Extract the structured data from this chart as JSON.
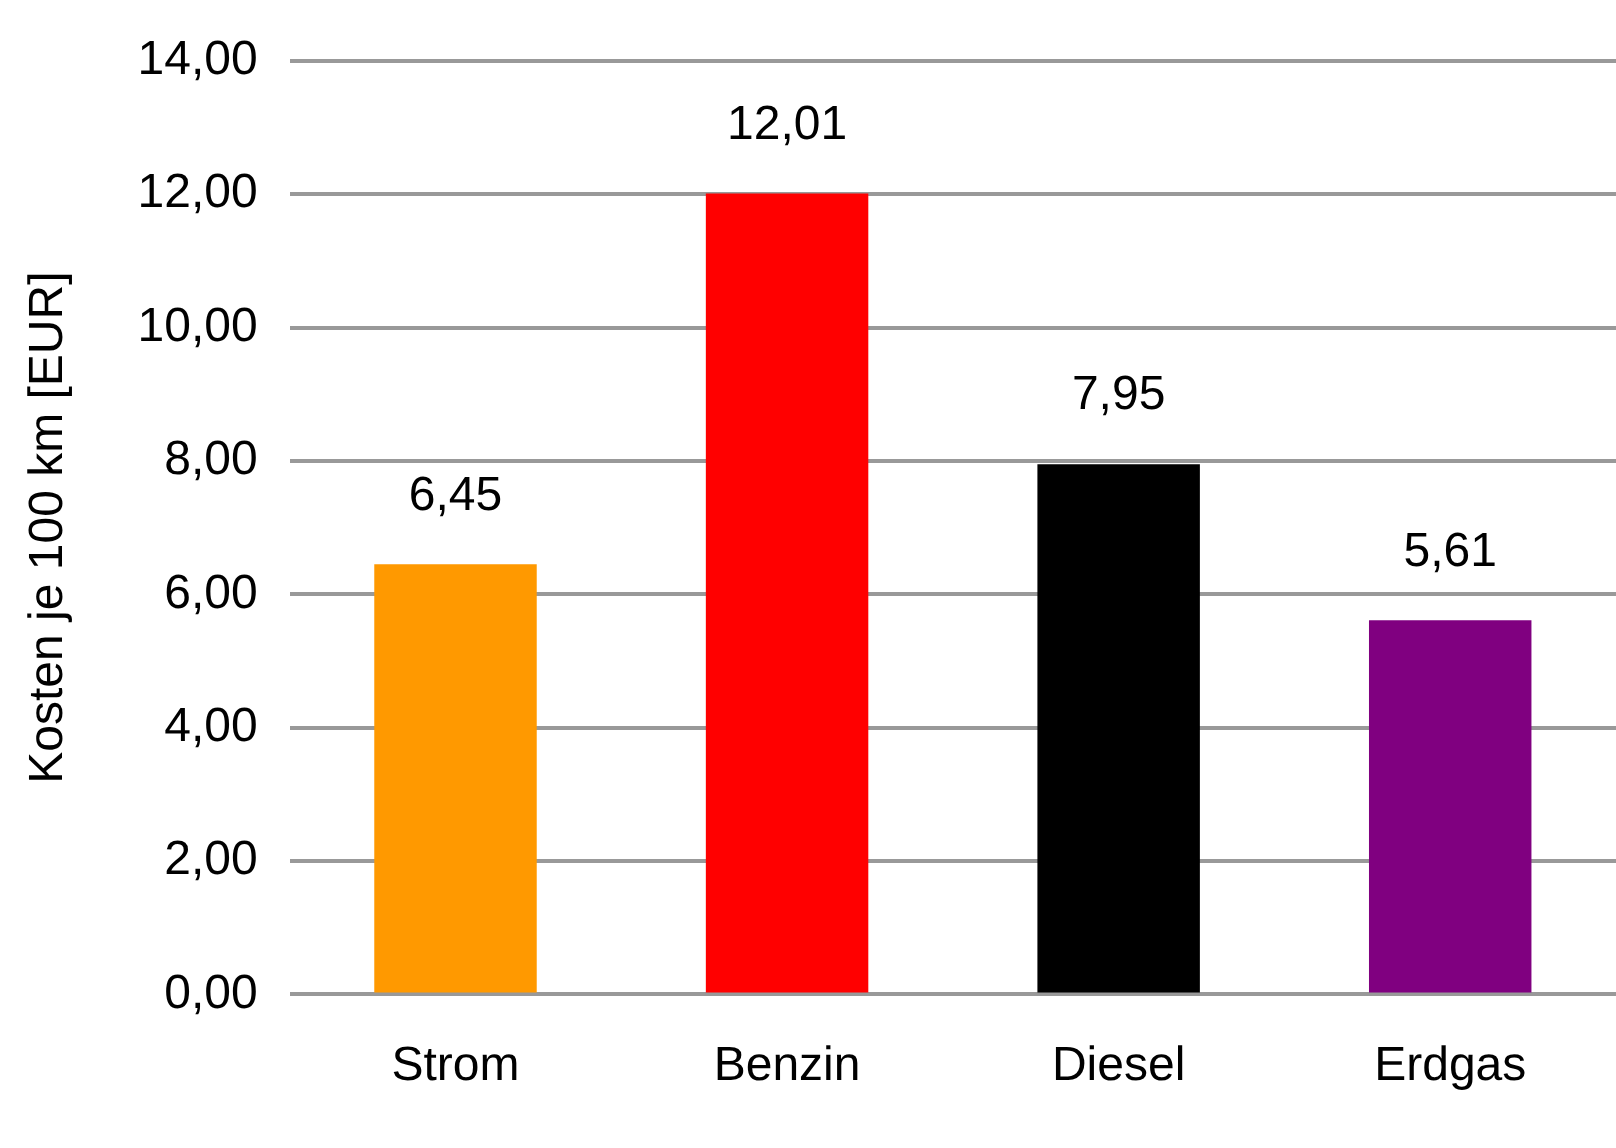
{
  "chart_data": {
    "type": "bar",
    "ylabel": "Kosten je 100 km [EUR]",
    "categories": [
      "Strom",
      "Benzin",
      "Diesel",
      "Erdgas"
    ],
    "values": [
      6.45,
      12.01,
      7.95,
      5.61
    ],
    "colors": [
      "#ff9900",
      "#ff0000",
      "#000000",
      "#800080"
    ],
    "value_labels": [
      "6,45",
      "12,01",
      "7,95",
      "5,61"
    ],
    "ylim": [
      0,
      14
    ],
    "yticks": [
      {
        "value": 0,
        "label": "0,00"
      },
      {
        "value": 2,
        "label": "2,00"
      },
      {
        "value": 4,
        "label": "4,00"
      },
      {
        "value": 6,
        "label": "6,00"
      },
      {
        "value": 8,
        "label": "8,00"
      },
      {
        "value": 10,
        "label": "10,00"
      },
      {
        "value": 12,
        "label": "12,00"
      },
      {
        "value": 14,
        "label": "14,00"
      }
    ],
    "grid": "y",
    "legend": false
  }
}
